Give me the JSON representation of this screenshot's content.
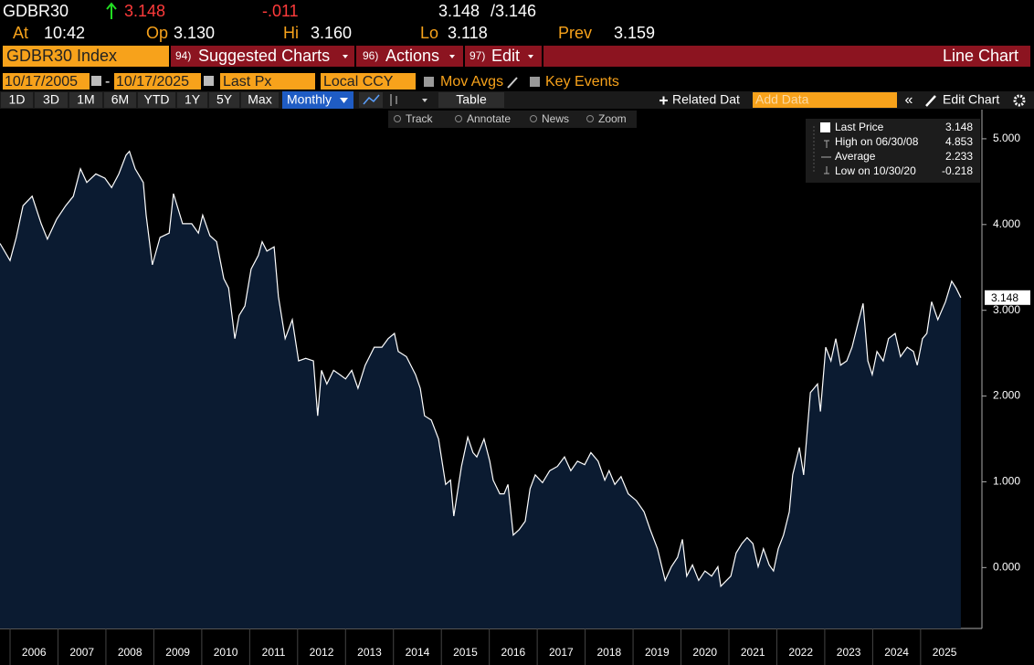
{
  "header": {
    "ticker": "GDBR30",
    "price": "3.148",
    "change": "-.011",
    "bid": "3.148",
    "ask": "/3.146",
    "time_label": "At",
    "time": "10:42",
    "open_label": "Op",
    "open": "3.130",
    "high_label": "Hi",
    "high": "3.160",
    "low_label": "Lo",
    "low": "3.118",
    "prev_label": "Prev",
    "prev": "3.159"
  },
  "menu": {
    "security": "GDBR30 Index",
    "items": [
      {
        "number": "94)",
        "label": "Suggested Charts"
      },
      {
        "number": "96)",
        "label": "Actions"
      },
      {
        "number": "97)",
        "label": "Edit"
      }
    ],
    "chart_name": "Line Chart"
  },
  "settings": {
    "start_date": "10/17/2005",
    "separator": "-",
    "end_date": "10/17/2025",
    "field": "Last Px",
    "currency": "Local CCY",
    "options": [
      "Mov Avgs",
      "Key Events"
    ]
  },
  "periods": [
    "1D",
    "3D",
    "1M",
    "6M",
    "YTD",
    "1Y",
    "5Y",
    "Max"
  ],
  "frequency": "Monthly",
  "table": "Table",
  "related_data": "Related Dat",
  "add_data": "Add Data",
  "edit_chart": "Edit Chart",
  "chart_tools": [
    "Track",
    "Annotate",
    "News",
    "Zoom"
  ],
  "chart_data": {
    "type": "line",
    "color": "#ffffff",
    "fill": "#0b1b31",
    "x": [
      2005.79,
      2006.0,
      2006.13,
      2006.27,
      2006.46,
      2006.65,
      2006.78,
      2006.97,
      2007.16,
      2007.32,
      2007.47,
      2007.6,
      2007.79,
      2007.98,
      2008.12,
      2008.27,
      2008.42,
      2008.49,
      2008.61,
      2008.78,
      2008.84,
      2008.97,
      2009.13,
      2009.32,
      2009.41,
      2009.6,
      2009.79,
      2009.93,
      2010.02,
      2010.17,
      2010.31,
      2010.46,
      2010.56,
      2010.69,
      2010.78,
      2010.9,
      2011.03,
      2011.18,
      2011.26,
      2011.36,
      2011.51,
      2011.6,
      2011.74,
      2011.89,
      2012.02,
      2012.17,
      2012.33,
      2012.42,
      2012.5,
      2012.61,
      2012.75,
      2012.88,
      2013.0,
      2013.13,
      2013.26,
      2013.41,
      2013.6,
      2013.76,
      2013.89,
      2014.02,
      2014.1,
      2014.27,
      2014.46,
      2014.56,
      2014.65,
      2014.79,
      2014.94,
      2015.09,
      2015.19,
      2015.26,
      2015.42,
      2015.55,
      2015.66,
      2015.74,
      2015.89,
      2016.01,
      2016.08,
      2016.22,
      2016.31,
      2016.39,
      2016.5,
      2016.62,
      2016.75,
      2016.85,
      2016.96,
      2017.11,
      2017.26,
      2017.42,
      2017.57,
      2017.7,
      2017.84,
      2017.99,
      2018.12,
      2018.27,
      2018.41,
      2018.5,
      2018.62,
      2018.75,
      2018.9,
      2019.07,
      2019.23,
      2019.36,
      2019.51,
      2019.67,
      2019.8,
      2019.93,
      2020.03,
      2020.12,
      2020.24,
      2020.37,
      2020.5,
      2020.64,
      2020.77,
      2020.83,
      2021.04,
      2021.15,
      2021.27,
      2021.38,
      2021.5,
      2021.61,
      2021.72,
      2021.84,
      2021.93,
      2022.03,
      2022.14,
      2022.26,
      2022.33,
      2022.47,
      2022.56,
      2022.7,
      2022.85,
      2022.91,
      2023.02,
      2023.13,
      2023.23,
      2023.33,
      2023.46,
      2023.57,
      2023.69,
      2023.8,
      2023.9,
      2023.99,
      2024.09,
      2024.22,
      2024.33,
      2024.47,
      2024.58,
      2024.72,
      2024.85,
      2024.93,
      2025.04,
      2025.13,
      2025.23,
      2025.36,
      2025.52,
      2025.65,
      2025.74,
      2025.84
    ],
    "values": [
      3.78,
      3.58,
      3.85,
      4.22,
      4.33,
      4.01,
      3.83,
      4.06,
      4.22,
      4.33,
      4.65,
      4.49,
      4.59,
      4.54,
      4.43,
      4.59,
      4.81,
      4.853,
      4.65,
      4.49,
      4.11,
      3.53,
      3.85,
      3.9,
      4.36,
      4.01,
      4.01,
      3.9,
      4.11,
      3.87,
      3.8,
      3.37,
      3.26,
      2.67,
      2.94,
      3.05,
      3.48,
      3.64,
      3.8,
      3.69,
      3.74,
      3.16,
      2.67,
      2.89,
      2.41,
      2.44,
      2.41,
      1.77,
      2.3,
      2.14,
      2.3,
      2.25,
      2.2,
      2.3,
      2.09,
      2.36,
      2.57,
      2.57,
      2.67,
      2.73,
      2.52,
      2.46,
      2.25,
      2.09,
      1.77,
      1.72,
      1.5,
      0.97,
      1.02,
      0.6,
      1.18,
      1.52,
      1.34,
      1.29,
      1.5,
      1.24,
      1.02,
      0.86,
      0.86,
      0.97,
      0.38,
      0.44,
      0.54,
      0.92,
      1.08,
      0.99,
      1.13,
      1.18,
      1.29,
      1.13,
      1.24,
      1.2,
      1.34,
      1.24,
      1.02,
      1.13,
      0.97,
      1.06,
      0.86,
      0.78,
      0.65,
      0.44,
      0.22,
      -0.15,
      0.01,
      0.12,
      0.33,
      -0.1,
      0.03,
      -0.15,
      -0.04,
      -0.1,
      0.01,
      -0.218,
      -0.1,
      0.17,
      0.28,
      0.35,
      0.28,
      0.01,
      0.22,
      0.03,
      -0.04,
      0.22,
      0.38,
      0.65,
      1.08,
      1.4,
      1.08,
      2.04,
      2.14,
      1.82,
      2.57,
      2.41,
      2.67,
      2.36,
      2.41,
      2.57,
      2.84,
      3.08,
      2.41,
      2.25,
      2.52,
      2.41,
      2.67,
      2.73,
      2.46,
      2.57,
      2.52,
      2.36,
      2.67,
      2.73,
      3.1,
      2.89,
      3.1,
      3.34,
      3.26,
      3.148
    ],
    "xlim": [
      2005.79,
      2026.28
    ],
    "xticks": [
      2006,
      2007,
      2008,
      2009,
      2010,
      2011,
      2012,
      2013,
      2014,
      2015,
      2016,
      2017,
      2018,
      2019,
      2020,
      2021,
      2022,
      2023,
      2024,
      2025
    ],
    "ylim": [
      -0.71,
      5.34
    ],
    "yticks": [
      {
        "value": 0,
        "label": "0.000"
      },
      {
        "value": 1,
        "label": "1.000"
      },
      {
        "value": 2,
        "label": "2.000"
      },
      {
        "value": 3,
        "label": "3.000"
      },
      {
        "value": 4,
        "label": "4.000"
      },
      {
        "value": 5,
        "label": "5.000"
      }
    ],
    "legend": [
      {
        "label": "Last Price",
        "value": 3.148
      },
      {
        "label": "High on 06/30/08",
        "value": 4.853
      },
      {
        "label": "Average",
        "value": 2.233
      },
      {
        "label": "Low on 10/30/20",
        "value": -0.218
      }
    ]
  }
}
